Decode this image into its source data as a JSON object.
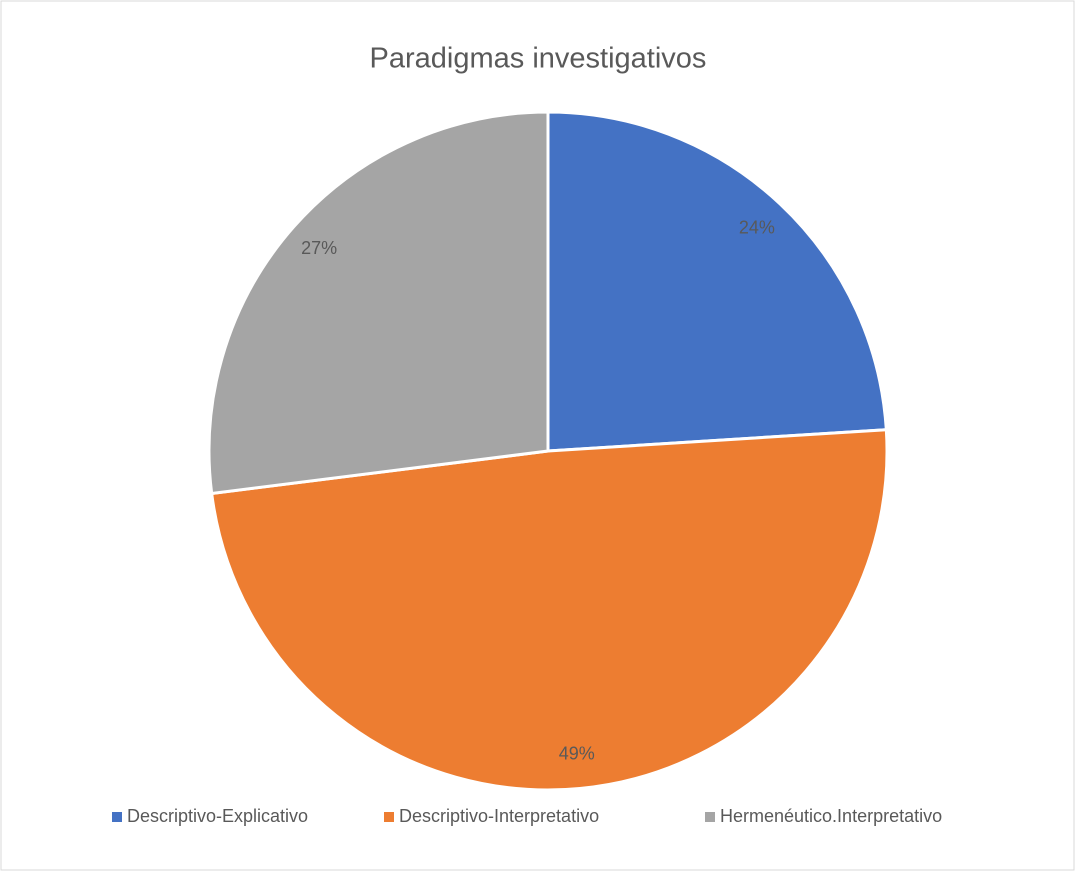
{
  "chart_data": {
    "type": "pie",
    "title": "Paradigmas investigativos",
    "categories": [
      "Descriptivo-Explicativo",
      "Descriptivo-Interpretativo",
      "Hermenéutico.Interpretativo"
    ],
    "values": [
      24,
      49,
      27
    ],
    "value_labels": [
      "24%",
      "49%",
      "27%"
    ],
    "colors": [
      "#4472c4",
      "#ed7d31",
      "#a5a5a5"
    ],
    "legend": "bottom"
  }
}
